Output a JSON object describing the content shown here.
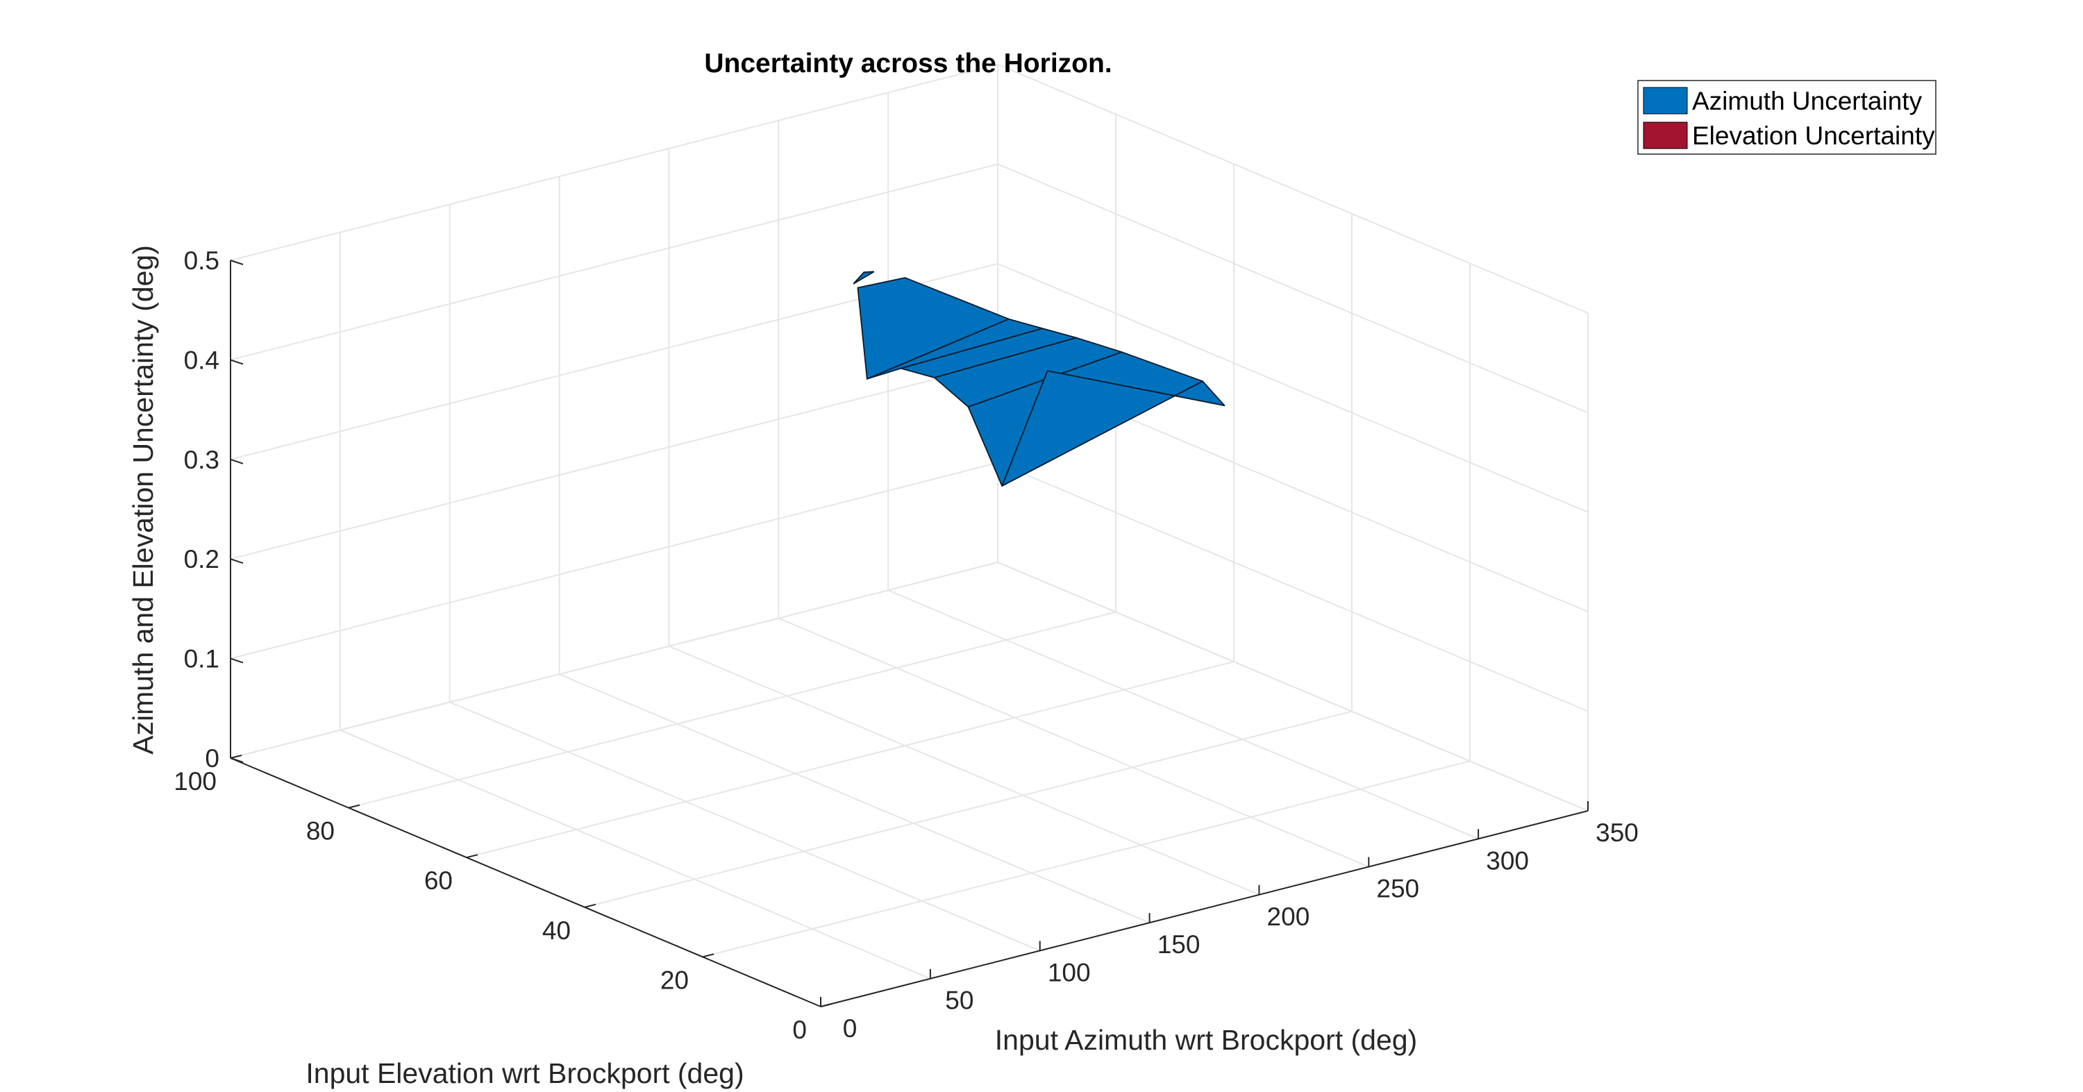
{
  "chart_data": {
    "type": "surface3d",
    "title": "Uncertainty across the Horizon.",
    "xlabel": "Input Azimuth wrt Brockport (deg)",
    "ylabel": "Input Elevation wrt Brockport (deg)",
    "zlabel": "Azimuth and Elevation Uncertainty (deg)",
    "xlim": [
      0,
      350
    ],
    "ylim": [
      0,
      100
    ],
    "zlim": [
      0,
      0.5
    ],
    "xticks": [
      "0",
      "50",
      "100",
      "150",
      "200",
      "250",
      "300",
      "350"
    ],
    "yticks": [
      "0",
      "20",
      "40",
      "60",
      "80",
      "100"
    ],
    "zticks": [
      "0",
      "0.1",
      "0.2",
      "0.3",
      "0.4",
      "0.5"
    ],
    "grid": true,
    "legend_position": "top-right",
    "series": [
      {
        "name": "Azimuth Uncertainty",
        "color": "#0072BD",
        "strips": [
          {
            "az": 200,
            "el_range": [
              60,
              68
            ],
            "z": [
              0.47,
              0.44
            ]
          },
          {
            "az": 215,
            "el_range": [
              48,
              72
            ],
            "z": [
              0.45,
              0.33
            ]
          },
          {
            "az": 225,
            "el_range": [
              46,
              70
            ],
            "z": [
              0.44,
              0.34
            ]
          },
          {
            "az": 235,
            "el_range": [
              44,
              68
            ],
            "z": [
              0.43,
              0.33
            ]
          },
          {
            "az": 245,
            "el_range": [
              40,
              66
            ],
            "z": [
              0.42,
              0.3
            ]
          },
          {
            "az": 255,
            "el_range": [
              30,
              64
            ],
            "z": [
              0.41,
              0.22
            ]
          },
          {
            "az": 265,
            "el_range": [
              30,
              60
            ],
            "z": [
              0.38,
              0.34
            ]
          }
        ]
      },
      {
        "name": "Elevation Uncertainty",
        "color": "#A2142F",
        "strips": []
      }
    ]
  }
}
